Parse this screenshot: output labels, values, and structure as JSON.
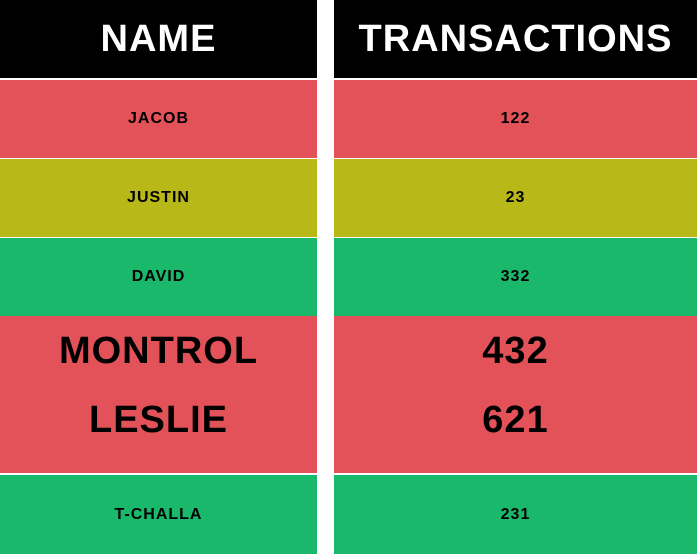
{
  "table": {
    "headers": [
      "NAME",
      "TRANSACTIONS"
    ],
    "rows": [
      {
        "names": [
          "JACOB"
        ],
        "transactions": [
          "122"
        ],
        "color": "#e35258"
      },
      {
        "names": [
          "JUSTIN"
        ],
        "transactions": [
          "23"
        ],
        "color": "#b8b919"
      },
      {
        "names": [
          "DAVID"
        ],
        "transactions": [
          "332"
        ],
        "color": "#1ab86a"
      },
      {
        "names": [
          "MONTROL",
          "LESLIE"
        ],
        "transactions": [
          "432",
          "621"
        ],
        "color": "#e35258"
      },
      {
        "names": [
          "T-CHALLA"
        ],
        "transactions": [
          "231"
        ],
        "color": "#1ab86a"
      }
    ]
  },
  "colors": {
    "header_bg": "#000000",
    "header_text": "#ffffff",
    "red": "#e35258",
    "olive": "#b8b919",
    "green": "#1ab86a"
  }
}
